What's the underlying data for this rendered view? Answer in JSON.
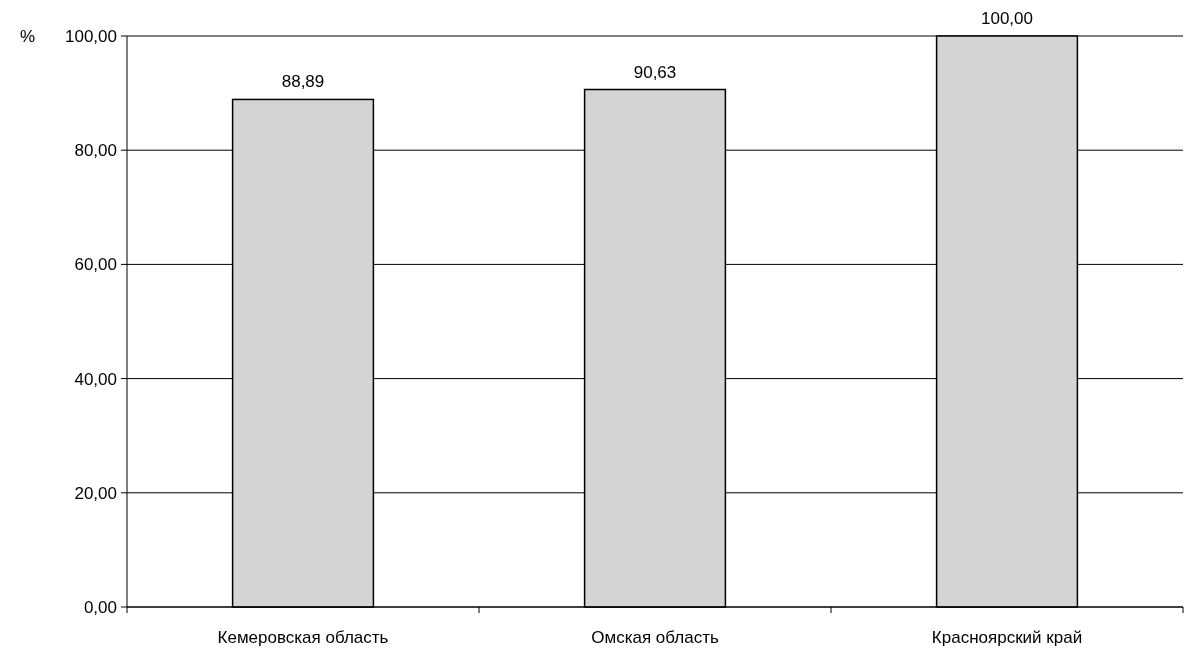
{
  "chart_data": {
    "type": "bar",
    "ylabel": "%",
    "categories": [
      "Кемеровская область",
      "Омская область",
      "Красноярский край"
    ],
    "values": [
      88.89,
      90.63,
      100
    ],
    "value_labels": [
      "88,89",
      "90,63",
      "100,00"
    ],
    "color": "#d4d4d4",
    "ylim": [
      0,
      100
    ],
    "yticks": [
      {
        "value": 0,
        "label": "0,00"
      },
      {
        "value": 20,
        "label": "20,00"
      },
      {
        "value": 40,
        "label": "40,00"
      },
      {
        "value": 60,
        "label": "60,00"
      },
      {
        "value": 80,
        "label": "80,00"
      },
      {
        "value": 100,
        "label": "100,00"
      }
    ],
    "grid": "y"
  }
}
